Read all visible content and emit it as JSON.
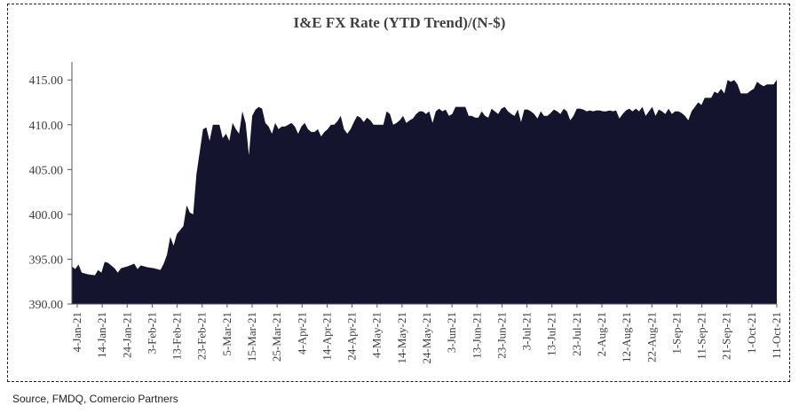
{
  "source_note": "Source, FMDQ, Comercio Partners",
  "colors": {
    "fill": "#14142e",
    "axis": "#555555",
    "text": "#404040"
  },
  "chart_data": {
    "type": "area",
    "title": "I&E FX Rate (YTD Trend)/(N-$)",
    "xlabel": "",
    "ylabel": "",
    "ylim": [
      390,
      417
    ],
    "y_ticks": [
      390,
      395,
      400,
      405,
      410,
      415
    ],
    "y_tick_labels": [
      "390.00",
      "395.00",
      "400.00",
      "405.00",
      "410.00",
      "415.00"
    ],
    "x_tick_labels": [
      "4-Jan-21",
      "14-Jan-21",
      "24-Jan-21",
      "3-Feb-21",
      "13-Feb-21",
      "23-Feb-21",
      "5-Mar-21",
      "15-Mar-21",
      "25-Mar-21",
      "4-Apr-21",
      "14-Apr-21",
      "24-Apr-21",
      "4-May-21",
      "14-May-21",
      "24-May-21",
      "3-Jun-21",
      "13-Jun-21",
      "23-Jun-21",
      "3-Jul-21",
      "13-Jul-21",
      "23-Jul-21",
      "2-Aug-21",
      "12-Aug-21",
      "22-Aug-21",
      "1-Sep-21",
      "11-Sep-21",
      "21-Sep-21",
      "1-Oct-21",
      "11-Oct-21"
    ],
    "legend": "none",
    "grid": false,
    "series": [
      {
        "values": [
          [
            0,
            394.2
          ],
          [
            1,
            393.9
          ],
          [
            2,
            394.4
          ],
          [
            3,
            393.5
          ],
          [
            5,
            393.3
          ],
          [
            7,
            393.2
          ],
          [
            8,
            393.8
          ],
          [
            9,
            393.5
          ],
          [
            10,
            394.7
          ],
          [
            11,
            394.6
          ],
          [
            13,
            394.0
          ],
          [
            14,
            393.5
          ],
          [
            15,
            394.0
          ],
          [
            17,
            394.2
          ],
          [
            19,
            394.5
          ],
          [
            20,
            393.9
          ],
          [
            21,
            394.3
          ],
          [
            23,
            394.1
          ],
          [
            25,
            394.0
          ],
          [
            27,
            393.8
          ],
          [
            28,
            394.5
          ],
          [
            29,
            395.5
          ],
          [
            30,
            397.5
          ],
          [
            31,
            396.5
          ],
          [
            32,
            397.8
          ],
          [
            34,
            398.7
          ],
          [
            35,
            401.0
          ],
          [
            36,
            400.2
          ],
          [
            37,
            400.0
          ],
          [
            38,
            404.5
          ],
          [
            39,
            407.0
          ],
          [
            40,
            409.5
          ],
          [
            41,
            409.7
          ],
          [
            42,
            408.2
          ],
          [
            43,
            410.0
          ],
          [
            44,
            410.0
          ],
          [
            45,
            410.0
          ],
          [
            46,
            408.5
          ],
          [
            47,
            409.0
          ],
          [
            48,
            408.2
          ],
          [
            49,
            410.2
          ],
          [
            50,
            409.5
          ],
          [
            51,
            409.0
          ],
          [
            52,
            411.5
          ],
          [
            53,
            410.2
          ],
          [
            54,
            406.6
          ],
          [
            55,
            411.0
          ],
          [
            56,
            411.7
          ],
          [
            57,
            412.0
          ],
          [
            58,
            411.8
          ],
          [
            59,
            410.2
          ],
          [
            60,
            409.8
          ],
          [
            61,
            409.0
          ],
          [
            62,
            410.2
          ],
          [
            63,
            409.5
          ],
          [
            64,
            409.8
          ],
          [
            65,
            409.8
          ],
          [
            66,
            410.0
          ],
          [
            67,
            410.2
          ],
          [
            68,
            409.8
          ],
          [
            69,
            409.0
          ],
          [
            70,
            409.8
          ],
          [
            71,
            410.2
          ],
          [
            72,
            409.5
          ],
          [
            73,
            409.2
          ],
          [
            74,
            409.2
          ],
          [
            75,
            409.5
          ],
          [
            76,
            408.7
          ],
          [
            77,
            409.2
          ],
          [
            78,
            409.5
          ],
          [
            79,
            410.0
          ],
          [
            80,
            410.0
          ],
          [
            81,
            410.4
          ],
          [
            82,
            411.0
          ],
          [
            83,
            409.5
          ],
          [
            84,
            409.0
          ],
          [
            85,
            409.5
          ],
          [
            86,
            410.3
          ],
          [
            87,
            411.0
          ],
          [
            88,
            410.8
          ],
          [
            89,
            410.3
          ],
          [
            90,
            410.8
          ],
          [
            91,
            410.5
          ],
          [
            92,
            410.0
          ],
          [
            93,
            410.0
          ],
          [
            94,
            410.0
          ],
          [
            95,
            410.0
          ],
          [
            96,
            411.5
          ],
          [
            97,
            411.2
          ],
          [
            98,
            410.0
          ],
          [
            99,
            410.2
          ],
          [
            100,
            410.5
          ],
          [
            101,
            411.0
          ],
          [
            102,
            410.2
          ],
          [
            103,
            410.5
          ],
          [
            104,
            410.7
          ],
          [
            105,
            411.2
          ],
          [
            106,
            411.5
          ],
          [
            107,
            411.5
          ],
          [
            108,
            411.2
          ],
          [
            109,
            411.5
          ],
          [
            110,
            410.2
          ],
          [
            111,
            411.5
          ],
          [
            112,
            411.8
          ],
          [
            113,
            411.5
          ],
          [
            114,
            411.7
          ],
          [
            115,
            411.0
          ],
          [
            116,
            411.2
          ],
          [
            117,
            412.0
          ],
          [
            118,
            412.0
          ],
          [
            119,
            412.0
          ],
          [
            120,
            412.0
          ],
          [
            121,
            411.0
          ],
          [
            122,
            411.0
          ],
          [
            123,
            410.8
          ],
          [
            124,
            410.8
          ],
          [
            125,
            411.5
          ],
          [
            126,
            411.0
          ],
          [
            127,
            410.8
          ],
          [
            128,
            411.8
          ],
          [
            129,
            411.5
          ],
          [
            130,
            411.2
          ],
          [
            131,
            411.8
          ],
          [
            132,
            412.0
          ],
          [
            133,
            411.5
          ],
          [
            134,
            411.2
          ],
          [
            135,
            411.0
          ],
          [
            136,
            411.7
          ],
          [
            137,
            410.3
          ],
          [
            138,
            411.7
          ],
          [
            139,
            411.7
          ],
          [
            140,
            411.5
          ],
          [
            141,
            411.2
          ],
          [
            142,
            410.7
          ],
          [
            143,
            411.5
          ],
          [
            144,
            411.0
          ],
          [
            145,
            411.0
          ],
          [
            146,
            411.3
          ],
          [
            147,
            411.7
          ],
          [
            148,
            411.5
          ],
          [
            149,
            411.2
          ],
          [
            150,
            411.8
          ],
          [
            151,
            411.5
          ],
          [
            152,
            410.5
          ],
          [
            153,
            411.0
          ],
          [
            154,
            411.8
          ],
          [
            155,
            411.8
          ],
          [
            156,
            411.7
          ],
          [
            157,
            411.5
          ],
          [
            158,
            411.6
          ],
          [
            159,
            411.5
          ],
          [
            160,
            411.6
          ],
          [
            161,
            411.6
          ],
          [
            162,
            411.5
          ],
          [
            163,
            411.5
          ],
          [
            164,
            411.6
          ],
          [
            165,
            411.5
          ],
          [
            166,
            411.6
          ],
          [
            167,
            410.7
          ],
          [
            168,
            411.2
          ],
          [
            169,
            411.6
          ],
          [
            170,
            411.8
          ],
          [
            171,
            411.5
          ],
          [
            172,
            411.8
          ],
          [
            173,
            411.5
          ],
          [
            174,
            412.0
          ],
          [
            175,
            411.0
          ],
          [
            176,
            411.5
          ],
          [
            177,
            412.0
          ],
          [
            178,
            411.0
          ],
          [
            179,
            411.7
          ],
          [
            180,
            411.5
          ],
          [
            181,
            411.2
          ],
          [
            182,
            411.8
          ],
          [
            183,
            411.2
          ],
          [
            184,
            411.5
          ],
          [
            185,
            411.5
          ],
          [
            186,
            411.3
          ],
          [
            187,
            411.0
          ],
          [
            188,
            410.5
          ],
          [
            189,
            411.5
          ],
          [
            190,
            412.0
          ],
          [
            191,
            412.5
          ],
          [
            192,
            412.2
          ],
          [
            193,
            413.0
          ],
          [
            194,
            413.0
          ],
          [
            195,
            413.0
          ],
          [
            196,
            413.7
          ],
          [
            197,
            413.5
          ],
          [
            198,
            414.0
          ],
          [
            199,
            413.5
          ],
          [
            200,
            415.0
          ],
          [
            201,
            414.8
          ],
          [
            202,
            415.0
          ],
          [
            203,
            414.5
          ],
          [
            204,
            413.5
          ],
          [
            205,
            413.5
          ],
          [
            206,
            413.5
          ],
          [
            207,
            413.8
          ],
          [
            208,
            414.0
          ],
          [
            209,
            414.8
          ],
          [
            210,
            414.5
          ],
          [
            211,
            414.3
          ],
          [
            212,
            414.5
          ],
          [
            213,
            414.5
          ],
          [
            214,
            414.5
          ],
          [
            215,
            415.0
          ]
        ]
      }
    ]
  }
}
